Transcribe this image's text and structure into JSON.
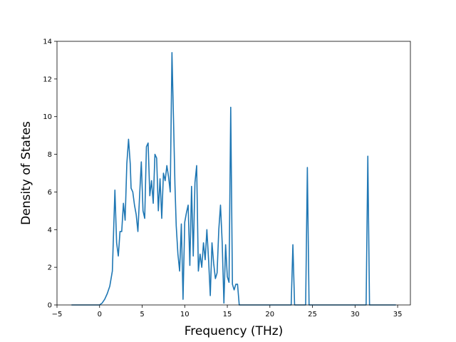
{
  "chart_data": {
    "type": "line",
    "title": "",
    "xlabel": "Frequency (THz)",
    "ylabel": "Density of States",
    "xlim": [
      -5,
      36.5
    ],
    "ylim": [
      0,
      14
    ],
    "xticks": [
      -5,
      0,
      5,
      10,
      15,
      20,
      25,
      30,
      35
    ],
    "yticks": [
      0,
      2,
      4,
      6,
      8,
      10,
      12,
      14
    ],
    "grid": false,
    "legend": "none",
    "line_color": "#1f77b4",
    "series": [
      {
        "x": [
          -3.3,
          0.0,
          0.3,
          0.6,
          0.9,
          1.2,
          1.5,
          1.8,
          2.0,
          2.2,
          2.4,
          2.6,
          2.8,
          3.0,
          3.2,
          3.4,
          3.6,
          3.7,
          3.9,
          4.1,
          4.3,
          4.5,
          4.7,
          4.9,
          5.1,
          5.3,
          5.5,
          5.7,
          5.9,
          6.1,
          6.3,
          6.5,
          6.7,
          6.9,
          7.1,
          7.3,
          7.5,
          7.7,
          7.9,
          8.1,
          8.3,
          8.5,
          8.7,
          8.85,
          9.0,
          9.2,
          9.4,
          9.6,
          9.8,
          10.0,
          10.2,
          10.4,
          10.6,
          10.8,
          11.0,
          11.2,
          11.4,
          11.6,
          11.8,
          12.0,
          12.2,
          12.4,
          12.6,
          12.8,
          13.0,
          13.2,
          13.4,
          13.6,
          13.8,
          14.0,
          14.2,
          14.4,
          14.6,
          14.8,
          15.0,
          15.2,
          15.4,
          15.6,
          15.8,
          16.0,
          16.2,
          16.4,
          16.5,
          22.5,
          22.7,
          22.9,
          24.2,
          24.4,
          24.6,
          31.3,
          31.5,
          31.7,
          34.8
        ],
        "y": [
          0,
          0,
          0.1,
          0.3,
          0.6,
          1.0,
          1.8,
          6.1,
          3.3,
          2.6,
          3.9,
          3.9,
          5.4,
          4.5,
          7.5,
          8.8,
          7.5,
          6.2,
          6.0,
          5.3,
          4.8,
          3.9,
          5.8,
          7.6,
          5.0,
          4.6,
          8.4,
          8.6,
          5.8,
          6.6,
          5.4,
          8.0,
          7.8,
          5.0,
          6.7,
          4.6,
          7.0,
          6.6,
          7.4,
          6.8,
          6.0,
          13.4,
          9.5,
          6.4,
          4.2,
          2.7,
          1.8,
          4.3,
          0.3,
          4.4,
          4.9,
          5.3,
          2.1,
          6.3,
          2.6,
          6.5,
          7.4,
          1.8,
          2.7,
          2.0,
          3.3,
          2.4,
          4.0,
          2.4,
          0.5,
          3.3,
          2.2,
          1.4,
          1.7,
          4.0,
          5.3,
          3.3,
          0.1,
          3.2,
          1.5,
          1.2,
          10.5,
          1.1,
          0.8,
          1.1,
          1.1,
          0,
          0,
          0,
          3.2,
          0,
          0,
          7.3,
          0,
          0,
          7.9,
          0,
          0
        ]
      }
    ]
  }
}
